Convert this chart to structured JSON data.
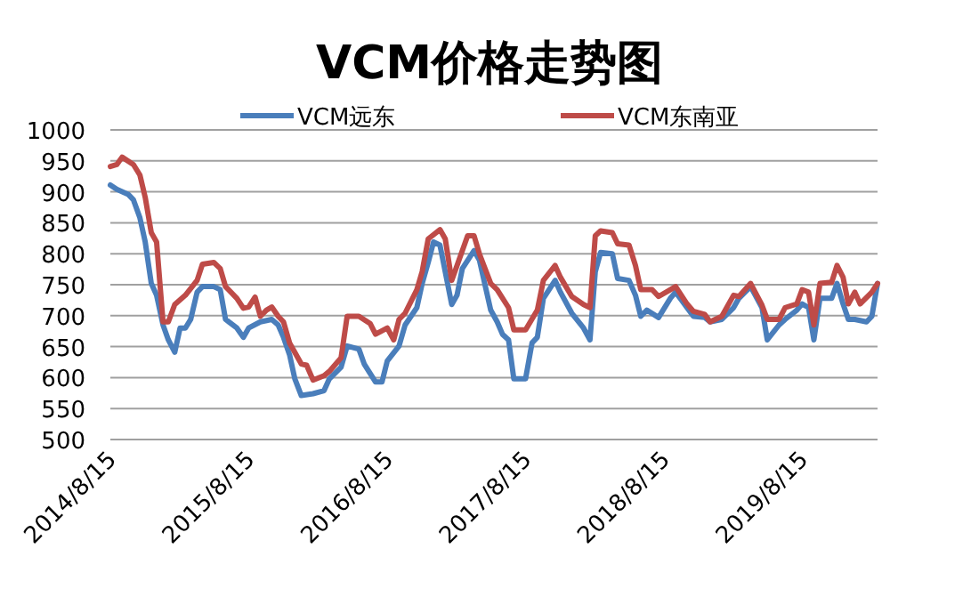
{
  "chart_data": {
    "type": "line",
    "title": "VCM价格走势图",
    "xlim": [
      "2014-08-15",
      "2020-03-01"
    ],
    "xticks": [
      {
        "value": "2014-08-15",
        "label": "2014/8/15"
      },
      {
        "value": "2015-08-15",
        "label": "2015/8/15"
      },
      {
        "value": "2016-08-15",
        "label": "2016/8/15"
      },
      {
        "value": "2017-08-15",
        "label": "2017/8/15"
      },
      {
        "value": "2018-08-15",
        "label": "2018/8/15"
      },
      {
        "value": "2019-08-15",
        "label": "2019/8/15"
      }
    ],
    "ylim": [
      500,
      1000
    ],
    "yticks": [
      500,
      550,
      600,
      650,
      700,
      750,
      800,
      850,
      900,
      950,
      1000
    ],
    "grid": "y",
    "legend": "top",
    "marker": "none",
    "line_style": "solid",
    "series": [
      {
        "name": "VCM远东",
        "color": "#4a7ebb",
        "x": [
          "2014-08-15",
          "2014-09-01",
          "2014-10-01",
          "2014-10-15",
          "2014-11-01",
          "2014-11-15",
          "2014-12-01",
          "2014-12-15",
          "2015-01-01",
          "2015-01-15",
          "2015-02-01",
          "2015-02-15",
          "2015-03-01",
          "2015-03-15",
          "2015-04-01",
          "2015-04-15",
          "2015-05-15",
          "2015-06-01",
          "2015-06-15",
          "2015-07-15",
          "2015-08-01",
          "2015-08-15",
          "2015-09-15",
          "2015-10-15",
          "2015-11-01",
          "2015-11-15",
          "2015-12-01",
          "2015-12-15",
          "2016-01-01",
          "2016-02-01",
          "2016-03-01",
          "2016-03-15",
          "2016-04-15",
          "2016-05-01",
          "2016-06-01",
          "2016-06-15",
          "2016-07-15",
          "2016-08-01",
          "2016-08-15",
          "2016-09-15",
          "2016-10-01",
          "2016-11-01",
          "2016-11-15",
          "2016-12-01",
          "2016-12-15",
          "2017-01-01",
          "2017-02-01",
          "2017-02-15",
          "2017-03-01",
          "2017-04-01",
          "2017-04-15",
          "2017-05-15",
          "2017-06-01",
          "2017-06-15",
          "2017-07-01",
          "2017-07-15",
          "2017-08-15",
          "2017-09-01",
          "2017-09-15",
          "2017-10-01",
          "2017-11-01",
          "2017-11-15",
          "2017-12-15",
          "2018-01-15",
          "2018-02-01",
          "2018-02-15",
          "2018-03-01",
          "2018-04-01",
          "2018-04-15",
          "2018-05-15",
          "2018-06-01",
          "2018-06-15",
          "2018-07-01",
          "2018-08-01",
          "2018-09-01",
          "2018-09-15",
          "2018-10-15",
          "2018-11-01",
          "2018-12-01",
          "2018-12-15",
          "2019-01-15",
          "2019-02-15",
          "2019-03-01",
          "2019-04-01",
          "2019-05-01",
          "2019-05-15",
          "2019-06-15",
          "2019-07-01",
          "2019-08-01",
          "2019-08-15",
          "2019-09-01",
          "2019-09-15",
          "2019-10-01",
          "2019-11-01",
          "2019-11-15",
          "2019-12-01",
          "2019-12-15",
          "2020-01-01",
          "2020-02-01",
          "2020-02-15",
          "2020-03-01"
        ],
        "values": [
          911,
          904,
          896,
          887,
          858,
          819,
          752,
          733,
          685,
          661,
          641,
          680,
          680,
          694,
          738,
          747,
          747,
          742,
          694,
          680,
          665,
          680,
          690,
          694,
          685,
          665,
          637,
          598,
          571,
          574,
          579,
          598,
          617,
          651,
          646,
          622,
          593,
          593,
          627,
          651,
          685,
          713,
          752,
          786,
          819,
          814,
          718,
          733,
          776,
          805,
          790,
          709,
          690,
          670,
          661,
          598,
          598,
          656,
          665,
          728,
          757,
          738,
          704,
          680,
          661,
          771,
          802,
          800,
          760,
          757,
          733,
          699,
          709,
          697,
          728,
          738,
          713,
          699,
          697,
          690,
          694,
          713,
          728,
          747,
          713,
          661,
          685,
          694,
          709,
          719,
          713,
          661,
          728,
          728,
          752,
          719,
          694,
          694,
          690,
          699,
          752
        ]
      },
      {
        "name": "VCM东南亚",
        "color": "#be4b48",
        "x": [
          "2014-08-15",
          "2014-09-01",
          "2014-09-15",
          "2014-10-15",
          "2014-11-01",
          "2014-11-15",
          "2014-12-01",
          "2014-12-15",
          "2015-01-01",
          "2015-01-15",
          "2015-02-01",
          "2015-03-01",
          "2015-04-01",
          "2015-04-15",
          "2015-05-15",
          "2015-06-01",
          "2015-06-15",
          "2015-07-15",
          "2015-08-01",
          "2015-08-15",
          "2015-09-01",
          "2015-09-15",
          "2015-10-01",
          "2015-10-15",
          "2015-11-01",
          "2015-11-15",
          "2015-12-01",
          "2016-01-01",
          "2016-01-15",
          "2016-02-01",
          "2016-03-01",
          "2016-03-15",
          "2016-04-15",
          "2016-05-01",
          "2016-06-01",
          "2016-07-01",
          "2016-07-15",
          "2016-08-15",
          "2016-09-01",
          "2016-09-15",
          "2016-10-01",
          "2016-11-01",
          "2016-11-15",
          "2016-12-01",
          "2017-01-01",
          "2017-01-15",
          "2017-02-01",
          "2017-02-15",
          "2017-03-15",
          "2017-04-01",
          "2017-04-15",
          "2017-05-15",
          "2017-06-01",
          "2017-07-01",
          "2017-07-15",
          "2017-08-15",
          "2017-09-15",
          "2017-10-01",
          "2017-11-01",
          "2017-11-15",
          "2017-12-15",
          "2018-01-15",
          "2018-02-01",
          "2018-02-15",
          "2018-03-01",
          "2018-04-01",
          "2018-04-15",
          "2018-05-15",
          "2018-06-01",
          "2018-06-15",
          "2018-07-15",
          "2018-08-01",
          "2018-09-01",
          "2018-09-15",
          "2018-10-15",
          "2018-11-01",
          "2018-12-01",
          "2018-12-15",
          "2019-01-15",
          "2019-02-15",
          "2019-03-01",
          "2019-04-01",
          "2019-05-01",
          "2019-05-15",
          "2019-06-15",
          "2019-07-01",
          "2019-08-01",
          "2019-08-15",
          "2019-09-01",
          "2019-09-15",
          "2019-10-01",
          "2019-11-01",
          "2019-11-15",
          "2019-12-01",
          "2019-12-15",
          "2020-01-01",
          "2020-01-15",
          "2020-02-15",
          "2020-03-01"
        ],
        "values": [
          941,
          944,
          956,
          944,
          927,
          891,
          834,
          819,
          690,
          690,
          718,
          733,
          757,
          783,
          786,
          776,
          747,
          728,
          712,
          714,
          730,
          699,
          709,
          714,
          699,
          690,
          656,
          622,
          620,
          596,
          603,
          610,
          632,
          699,
          699,
          687,
          670,
          680,
          661,
          694,
          704,
          742,
          771,
          824,
          839,
          824,
          757,
          781,
          829,
          829,
          800,
          752,
          742,
          713,
          677,
          677,
          709,
          757,
          781,
          762,
          731,
          718,
          713,
          829,
          837,
          834,
          816,
          814,
          781,
          742,
          742,
          731,
          742,
          747,
          719,
          707,
          702,
          690,
          699,
          733,
          731,
          752,
          717,
          694,
          694,
          713,
          719,
          742,
          738,
          685,
          752,
          754,
          781,
          762,
          719,
          738,
          719,
          738,
          752
        ]
      }
    ]
  }
}
